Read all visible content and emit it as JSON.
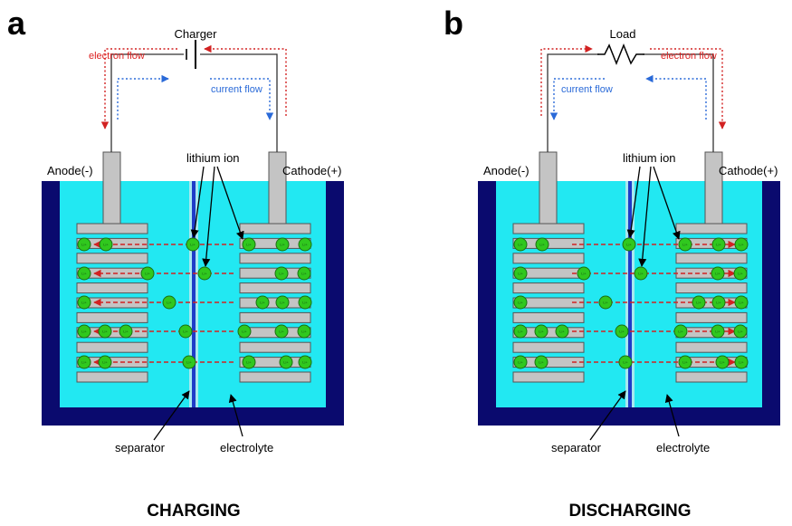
{
  "panels": [
    {
      "letter": "a",
      "mode": "charging",
      "device_label": "Charger",
      "electron_flow_label": "electron flow",
      "current_flow_label": "current flow",
      "anode_label": "Anode(-)",
      "cathode_label": "Cathode(+)",
      "lithium_ion_label": "lithium ion",
      "separator_label": "separator",
      "electrolyte_label": "electrolyte",
      "caption": "CHARGING",
      "ion_symbol": "Li+"
    },
    {
      "letter": "b",
      "mode": "discharging",
      "device_label": "Load",
      "electron_flow_label": "electron flow",
      "current_flow_label": "current flow",
      "anode_label": "Anode(-)",
      "cathode_label": "Cathode(+)",
      "lithium_ion_label": "lithium ion",
      "separator_label": "separator",
      "electrolyte_label": "electrolyte",
      "caption": "DISCHARGING",
      "ion_symbol": "Li+"
    }
  ],
  "colors": {
    "container": "#0a0a6e",
    "electrolyte": "#22e8f2",
    "electrode": "#c4c4c4",
    "ion": "#30c81e",
    "separator": "#1e3cc8",
    "electron_flow": "#d22222",
    "current_flow": "#2a6ad8"
  }
}
